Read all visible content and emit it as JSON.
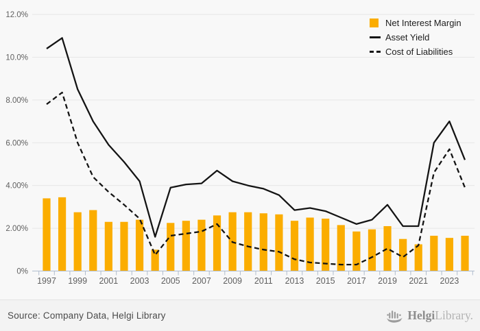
{
  "chart_data": {
    "type": "bar",
    "title": "",
    "years": [
      1997,
      1998,
      1999,
      2000,
      2001,
      2002,
      2003,
      2004,
      2005,
      2006,
      2007,
      2008,
      2009,
      2010,
      2011,
      2012,
      2013,
      2014,
      2015,
      2016,
      2017,
      2018,
      2019,
      2020,
      2021,
      2022,
      2023,
      2024
    ],
    "x_tick_labels": [
      "1997",
      "1999",
      "2001",
      "2003",
      "2005",
      "2007",
      "2009",
      "2011",
      "2013",
      "2015",
      "2017",
      "2019",
      "2021",
      "2023"
    ],
    "y_tick_labels": [
      "0%",
      "2.00%",
      "4.00%",
      "6.00%",
      "8.00%",
      "10.0%",
      "12.0%"
    ],
    "ylim": [
      0,
      12
    ],
    "unit": "%",
    "grid": true,
    "legend_position": "top-right",
    "series": [
      {
        "name": "Net Interest Margin",
        "type": "bar",
        "color": "#FBAD00",
        "values": [
          3.4,
          3.45,
          2.75,
          2.85,
          2.3,
          2.3,
          2.4,
          1.0,
          2.25,
          2.35,
          2.4,
          2.6,
          2.75,
          2.75,
          2.7,
          2.65,
          2.35,
          2.5,
          2.45,
          2.15,
          1.85,
          1.95,
          2.1,
          1.5,
          1.25,
          1.65,
          1.55,
          1.65
        ]
      },
      {
        "name": "Asset Yield",
        "type": "line",
        "style": "solid",
        "color": "#141414",
        "values": [
          10.4,
          10.9,
          8.5,
          7.0,
          5.9,
          5.1,
          4.2,
          1.6,
          3.9,
          4.05,
          4.1,
          4.7,
          4.2,
          4.0,
          3.85,
          3.55,
          2.85,
          2.95,
          2.8,
          2.5,
          2.2,
          2.4,
          3.1,
          2.1,
          2.1,
          6.0,
          7.0,
          5.2
        ]
      },
      {
        "name": "Cost of Liabilities",
        "type": "line",
        "style": "dashed",
        "color": "#141414",
        "values": [
          7.8,
          8.35,
          6.0,
          4.4,
          3.7,
          3.1,
          2.45,
          0.75,
          1.65,
          1.75,
          1.85,
          2.2,
          1.35,
          1.15,
          1.0,
          0.9,
          0.55,
          0.4,
          0.35,
          0.3,
          0.3,
          0.65,
          1.05,
          0.65,
          1.2,
          4.6,
          5.7,
          3.9
        ]
      }
    ]
  },
  "colors": {
    "bar": "#FBAD00",
    "line": "#141414",
    "background": "#f8f8f8",
    "footer_background": "#f3f3f3",
    "grid": "#e6e6e6",
    "axis": "#afbccd",
    "tick_text": "#5f5f5f"
  },
  "footer": {
    "source_text": "Source: Company Data, Helgi Library",
    "logo": {
      "bold": "Helgi",
      "light": "Library."
    }
  }
}
